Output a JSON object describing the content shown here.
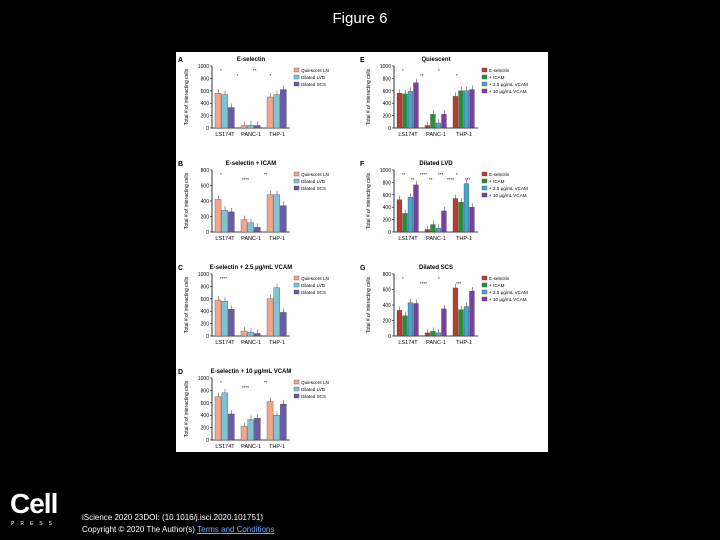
{
  "slide": {
    "title": "Figure 6",
    "logo_main": "Cell",
    "logo_sub": "PRESS",
    "citation": "iScience 2020 23DOI: (10.1016/j.isci.2020.101751)",
    "copyright_prefix": "Copyright © 2020 The Author(s)",
    "copyright_link": "Terms and Conditions"
  },
  "colors": {
    "left_series": [
      "#f2a58a",
      "#7ec4d4",
      "#6a5aa8"
    ],
    "right_series": [
      "#c0392b",
      "#2e8b3a",
      "#4aa3cc",
      "#7b3fa0"
    ]
  },
  "chart_data": [
    {
      "panel": "A",
      "type": "bar",
      "title": "E-selectin",
      "ylabel": "Total # of interacting cells",
      "ylim": [
        0,
        1000
      ],
      "yticks": [
        0,
        200,
        400,
        600,
        800,
        1000
      ],
      "categories": [
        "LS174T",
        "PANC-1",
        "THP-1"
      ],
      "series": [
        {
          "name": "Quiescent LN",
          "values": [
            560,
            40,
            500
          ]
        },
        {
          "name": "Dilated LVD",
          "values": [
            540,
            45,
            540
          ]
        },
        {
          "name": "Dilated SCS",
          "values": [
            330,
            40,
            620
          ]
        }
      ],
      "annotations": [
        "*",
        "*",
        "**",
        "*"
      ]
    },
    {
      "panel": "B",
      "type": "bar",
      "title": "E-selectin + ICAM",
      "ylabel": "Total # of interacting cells",
      "ylim": [
        0,
        800
      ],
      "yticks": [
        0,
        200,
        400,
        600,
        800
      ],
      "categories": [
        "LS174T",
        "PANC-1",
        "THP-1"
      ],
      "series": [
        {
          "name": "Quiescent LN",
          "values": [
            420,
            160,
            480
          ]
        },
        {
          "name": "Dilated LVD",
          "values": [
            280,
            120,
            480
          ]
        },
        {
          "name": "Dilated SCS",
          "values": [
            260,
            60,
            340
          ]
        }
      ],
      "annotations": [
        "*",
        "****",
        "**"
      ]
    },
    {
      "panel": "C",
      "type": "bar",
      "title": "E-selectin + 2.5 μg/mL VCAM",
      "ylabel": "Total # of interacting cells",
      "ylim": [
        0,
        1000
      ],
      "yticks": [
        0,
        200,
        400,
        600,
        800,
        1000
      ],
      "categories": [
        "LS174T",
        "PANC-1",
        "THP-1"
      ],
      "series": [
        {
          "name": "Quiescent LN",
          "values": [
            580,
            80,
            600
          ]
        },
        {
          "name": "Dilated LVD",
          "values": [
            560,
            60,
            780
          ]
        },
        {
          "name": "Dilated SCS",
          "values": [
            430,
            40,
            380
          ]
        }
      ],
      "annotations": [
        "****"
      ]
    },
    {
      "panel": "D",
      "type": "bar",
      "title": "E-selectin + 10 μg/mL VCAM",
      "ylabel": "Total # of interacting cells",
      "ylim": [
        0,
        1000
      ],
      "yticks": [
        0,
        200,
        400,
        600,
        800,
        1000
      ],
      "categories": [
        "LS174T",
        "PANC-1",
        "THP-1"
      ],
      "series": [
        {
          "name": "Quiescent LN",
          "values": [
            700,
            220,
            620
          ]
        },
        {
          "name": "Dilated LVD",
          "values": [
            760,
            330,
            400
          ]
        },
        {
          "name": "Dilated SCS",
          "values": [
            420,
            350,
            580
          ]
        }
      ],
      "annotations": [
        "*",
        "****",
        "**"
      ]
    },
    {
      "panel": "E",
      "type": "bar",
      "title": "Quiescent",
      "ylabel": "Total # of interacting cells",
      "ylim": [
        0,
        1000
      ],
      "yticks": [
        0,
        200,
        400,
        600,
        800,
        1000
      ],
      "categories": [
        "LS174T",
        "PANC-1",
        "THP-1"
      ],
      "series": [
        {
          "name": "E-selectin",
          "values": [
            560,
            40,
            510
          ]
        },
        {
          "name": "+ ICAM",
          "values": [
            550,
            220,
            600
          ]
        },
        {
          "name": "+ 2.5 μg/mL VCAM",
          "values": [
            590,
            80,
            600
          ]
        },
        {
          "name": "+ 10 μg/mL VCAM",
          "values": [
            730,
            220,
            620
          ]
        }
      ],
      "annotations": [
        "*",
        "**",
        "*",
        "*"
      ]
    },
    {
      "panel": "F",
      "type": "bar",
      "title": "Dilated LVD",
      "ylabel": "Total # of interacting cells",
      "ylim": [
        0,
        1000
      ],
      "yticks": [
        0,
        200,
        400,
        600,
        800,
        1000
      ],
      "categories": [
        "LS174T",
        "PANC-1",
        "THP-1"
      ],
      "series": [
        {
          "name": "E-selectin",
          "values": [
            520,
            40,
            540
          ]
        },
        {
          "name": "+ ICAM",
          "values": [
            300,
            120,
            480
          ]
        },
        {
          "name": "+ 2.5 μg/mL VCAM",
          "values": [
            560,
            60,
            780
          ]
        },
        {
          "name": "+ 10 μg/mL VCAM",
          "values": [
            760,
            340,
            400
          ]
        }
      ],
      "annotations": [
        "**",
        "**",
        "****",
        "**",
        "***",
        "****",
        "*",
        "***"
      ]
    },
    {
      "panel": "G",
      "type": "bar",
      "title": "Dilated SCS",
      "ylabel": "Total # of interacting cells",
      "ylim": [
        0,
        800
      ],
      "yticks": [
        0,
        200,
        400,
        600,
        800
      ],
      "categories": [
        "LS174T",
        "PANC-1",
        "THP-1"
      ],
      "series": [
        {
          "name": "E-selectin",
          "values": [
            330,
            40,
            620
          ]
        },
        {
          "name": "+ ICAM",
          "values": [
            260,
            60,
            340
          ]
        },
        {
          "name": "+ 2.5 μg/mL VCAM",
          "values": [
            430,
            40,
            380
          ]
        },
        {
          "name": "+ 10 μg/mL VCAM",
          "values": [
            420,
            350,
            580
          ]
        }
      ],
      "annotations": [
        "*",
        "****",
        "*",
        "***"
      ]
    }
  ]
}
